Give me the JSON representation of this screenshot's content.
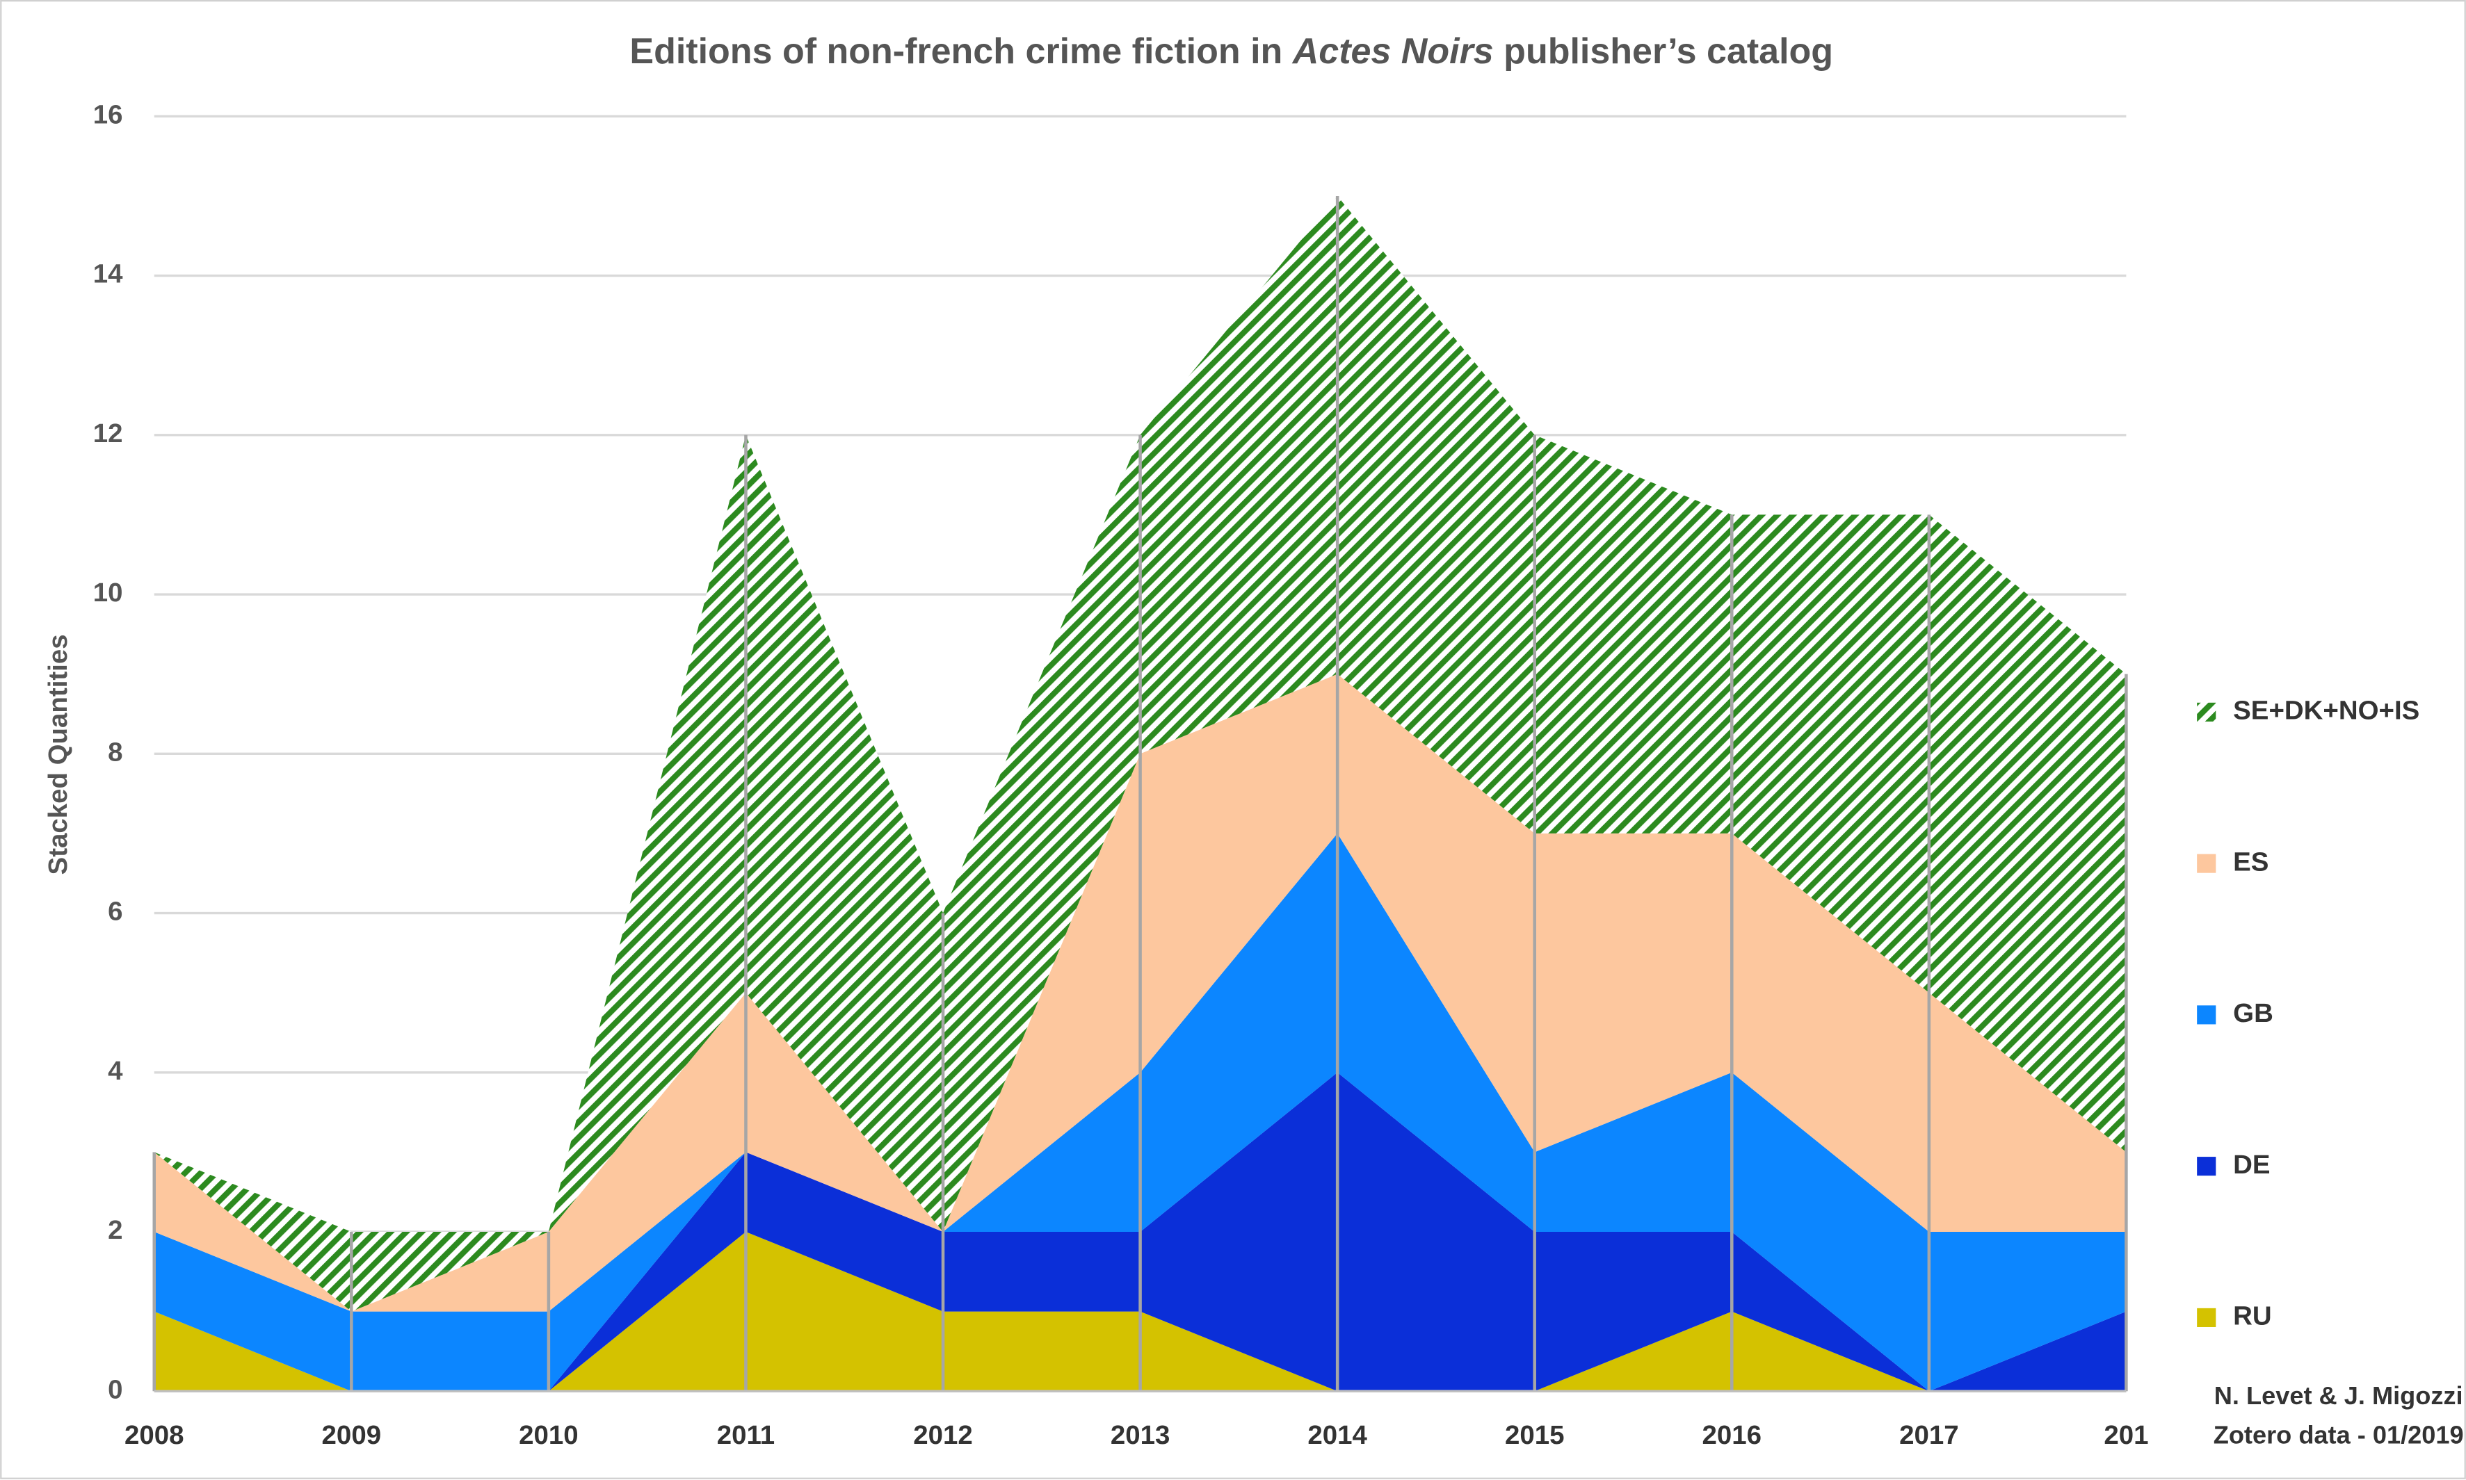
{
  "chart_data": {
    "type": "stacked-area",
    "title": {
      "before": "Editions of non-french crime fiction in ",
      "italic": "Actes Noirs",
      "after": " publisher’s catalog"
    },
    "y_label": "Stacked Quantities",
    "annotations": [
      "N. Levet & J. Migozzi",
      "Zotero data - 01/2019"
    ],
    "categories": [
      "2008",
      "2009",
      "2010",
      "2011",
      "2012",
      "2013",
      "2014",
      "2015",
      "2016",
      "2017",
      "201"
    ],
    "series": [
      {
        "name": "RU",
        "color": "#d4c200",
        "values": [
          1,
          0,
          0,
          2,
          1,
          1,
          0,
          0,
          1,
          0,
          0
        ]
      },
      {
        "name": "DE",
        "color": "#0b2fd8",
        "values": [
          0,
          0,
          0,
          1,
          1,
          1,
          4,
          2,
          1,
          0,
          1
        ]
      },
      {
        "name": "GB",
        "color": "#0c86ff",
        "values": [
          1,
          1,
          1,
          0,
          0,
          2,
          3,
          1,
          2,
          2,
          1
        ]
      },
      {
        "name": "ES",
        "color": "#fdc79e",
        "values": [
          1,
          0,
          1,
          2,
          0,
          4,
          2,
          4,
          3,
          3,
          1
        ]
      },
      {
        "name": "SE+DK+NO+IS",
        "color": "#2c8a1f",
        "hatch": true,
        "values": [
          0,
          1,
          0,
          7,
          4,
          4,
          6,
          5,
          4,
          6,
          6
        ]
      }
    ],
    "ylim": [
      0,
      16
    ],
    "yticks": [
      0,
      2,
      4,
      6,
      8,
      10,
      12,
      14,
      16
    ],
    "grid": true,
    "legend": "right"
  }
}
